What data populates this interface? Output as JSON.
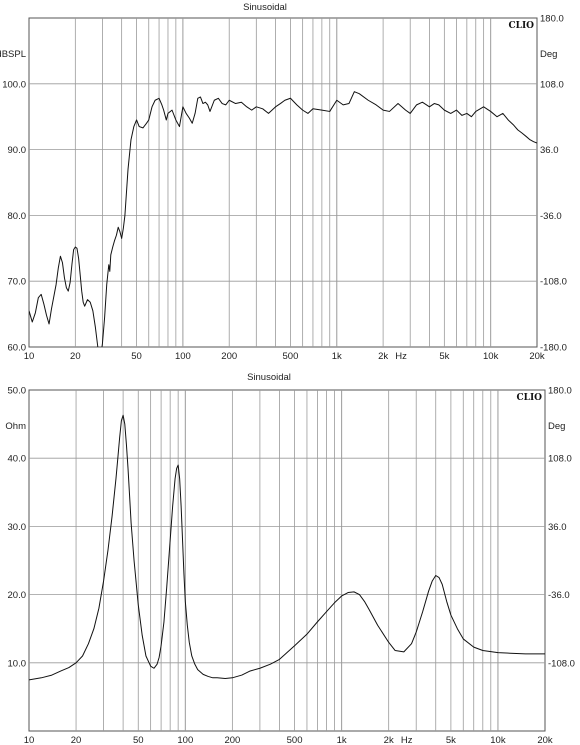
{
  "chart_data": [
    {
      "type": "line",
      "title": "Sinusoidal",
      "brand": "CLIO",
      "xscale": "log",
      "xlim": [
        10,
        20000
      ],
      "ylim": [
        60,
        110
      ],
      "ylim_right": [
        -180,
        180
      ],
      "ylabel": "dBSPL",
      "ylabel_right": "Deg",
      "x_unit_label": "Hz",
      "grid": true,
      "x_ticks": [
        {
          "v": 10,
          "label": "10"
        },
        {
          "v": 20,
          "label": "20"
        },
        {
          "v": 50,
          "label": "50"
        },
        {
          "v": 100,
          "label": "100"
        },
        {
          "v": 200,
          "label": "200"
        },
        {
          "v": 500,
          "label": "500"
        },
        {
          "v": 1000,
          "label": "1k"
        },
        {
          "v": 2000,
          "label": "2k"
        },
        {
          "v": 5000,
          "label": "5k"
        },
        {
          "v": 10000,
          "label": "10k"
        },
        {
          "v": 20000,
          "label": "20k"
        }
      ],
      "y_ticks": [
        {
          "v": 60,
          "label": "60.0"
        },
        {
          "v": 70,
          "label": "70.0"
        },
        {
          "v": 80,
          "label": "80.0"
        },
        {
          "v": 90,
          "label": "90.0"
        },
        {
          "v": 100,
          "label": "100.0"
        }
      ],
      "y_ticks_right": [
        {
          "v": 180,
          "label": "180.0"
        },
        {
          "v": 108,
          "label": "108.0"
        },
        {
          "v": 36,
          "label": "36.0"
        },
        {
          "v": -36,
          "label": "-36.0"
        },
        {
          "v": -108,
          "label": "-108.0"
        },
        {
          "v": -180,
          "label": "-180.0"
        }
      ],
      "series": [
        {
          "x": [
            10,
            10.5,
            11,
            11.5,
            12,
            12.5,
            13,
            13.5,
            14,
            15,
            15.5,
            16,
            16.5,
            17,
            17.5,
            18,
            18.5,
            19,
            19.5,
            20,
            20.5,
            21,
            21.5,
            22,
            22.5,
            23,
            24,
            25,
            26,
            27,
            28,
            29,
            30,
            31,
            32,
            33,
            33.5,
            34,
            35,
            36,
            37,
            38,
            39,
            40,
            41,
            42,
            44,
            46,
            48,
            50,
            52,
            55,
            58,
            60,
            63,
            66,
            70,
            73,
            75,
            78,
            80,
            85,
            90,
            95,
            100,
            105,
            110,
            115,
            120,
            125,
            130,
            135,
            140,
            145,
            150,
            160,
            170,
            180,
            190,
            200,
            220,
            240,
            260,
            280,
            300,
            330,
            360,
            400,
            430,
            460,
            500,
            550,
            600,
            650,
            700,
            800,
            900,
            1000,
            1100,
            1200,
            1300,
            1400,
            1600,
            1800,
            2000,
            2200,
            2500,
            2800,
            3000,
            3300,
            3600,
            4000,
            4300,
            4600,
            5000,
            5500,
            6000,
            6500,
            7000,
            7500,
            8000,
            9000,
            10000,
            11000,
            12000,
            13000,
            14000,
            15000,
            16000,
            17000,
            18000,
            19000,
            20000
          ],
          "y": [
            65.5,
            63.8,
            65.2,
            67.5,
            68.0,
            66.5,
            64.8,
            63.5,
            65.8,
            69.5,
            72.0,
            73.8,
            72.8,
            70.5,
            69.0,
            68.5,
            69.8,
            72.5,
            74.8,
            75.2,
            75.0,
            73.5,
            71.0,
            68.5,
            66.8,
            66.2,
            67.2,
            66.8,
            65.5,
            63.0,
            60.0,
            58.0,
            60.5,
            64.5,
            69.5,
            72.5,
            71.5,
            74.0,
            75.2,
            76.2,
            77.0,
            78.2,
            77.5,
            76.5,
            78.0,
            80.0,
            87.0,
            91.5,
            93.5,
            94.5,
            93.5,
            93.3,
            94.0,
            94.5,
            96.5,
            97.5,
            97.8,
            96.8,
            96.0,
            94.5,
            95.5,
            96.0,
            94.5,
            93.5,
            96.5,
            95.5,
            94.8,
            94.0,
            95.5,
            97.8,
            98.0,
            97.0,
            97.2,
            96.8,
            95.8,
            97.5,
            97.8,
            97.0,
            96.8,
            97.5,
            97.0,
            97.2,
            96.5,
            96.0,
            96.5,
            96.2,
            95.5,
            96.5,
            97.0,
            97.5,
            97.8,
            96.8,
            96.0,
            95.5,
            96.2,
            96.0,
            95.8,
            97.5,
            96.8,
            97.0,
            98.8,
            98.5,
            97.5,
            96.8,
            96.0,
            95.8,
            97.0,
            96.0,
            95.5,
            96.8,
            97.2,
            96.5,
            97.0,
            96.8,
            96.0,
            95.5,
            96.0,
            95.2,
            95.5,
            95.0,
            95.8,
            96.5,
            95.8,
            95.0,
            95.5,
            94.5,
            93.8,
            93.0,
            92.5,
            92.0,
            91.5,
            91.2,
            91.0
          ]
        }
      ]
    },
    {
      "type": "line",
      "title": "Sinusoidal",
      "brand": "CLIO",
      "xscale": "log",
      "xlim": [
        10,
        20000
      ],
      "ylim": [
        0,
        50
      ],
      "ylim_right": [
        -180,
        180
      ],
      "ylabel": "Ohm",
      "ylabel_right": "Deg",
      "x_unit_label": "Hz",
      "grid": true,
      "x_ticks": [
        {
          "v": 10,
          "label": "10"
        },
        {
          "v": 20,
          "label": "20"
        },
        {
          "v": 50,
          "label": "50"
        },
        {
          "v": 100,
          "label": "100"
        },
        {
          "v": 200,
          "label": "200"
        },
        {
          "v": 500,
          "label": "500"
        },
        {
          "v": 1000,
          "label": "1k"
        },
        {
          "v": 2000,
          "label": "2k"
        },
        {
          "v": 5000,
          "label": "5k"
        },
        {
          "v": 10000,
          "label": "10k"
        },
        {
          "v": 20000,
          "label": "20k"
        }
      ],
      "y_ticks": [
        {
          "v": 10,
          "label": "10.0"
        },
        {
          "v": 20,
          "label": "20.0"
        },
        {
          "v": 30,
          "label": "30.0"
        },
        {
          "v": 40,
          "label": "40.0"
        },
        {
          "v": 50,
          "label": "50.0"
        }
      ],
      "y_ticks_right": [
        {
          "v": 180,
          "label": "180.0"
        },
        {
          "v": 108,
          "label": "108.0"
        },
        {
          "v": 36,
          "label": "36.0"
        },
        {
          "v": -36,
          "label": "-36.0"
        },
        {
          "v": -108,
          "label": "-108.0"
        }
      ],
      "series": [
        {
          "x": [
            10,
            12,
            14,
            16,
            18,
            20,
            22,
            24,
            26,
            28,
            30,
            32,
            34,
            36,
            37,
            38,
            39,
            40,
            41,
            42,
            43,
            44,
            45,
            47,
            50,
            53,
            56,
            60,
            63,
            66,
            68,
            70,
            73,
            76,
            80,
            83,
            86,
            88,
            90,
            92,
            94,
            96,
            98,
            100,
            103,
            106,
            110,
            115,
            120,
            130,
            140,
            150,
            160,
            180,
            200,
            230,
            260,
            300,
            350,
            400,
            500,
            600,
            700,
            800,
            900,
            1000,
            1100,
            1200,
            1300,
            1400,
            1500,
            1700,
            2000,
            2200,
            2500,
            2800,
            3000,
            3300,
            3600,
            3800,
            4000,
            4200,
            4400,
            4700,
            5000,
            5500,
            6000,
            7000,
            8000,
            10000,
            12000,
            15000,
            20000
          ],
          "y": [
            7.5,
            7.8,
            8.2,
            8.8,
            9.3,
            10.0,
            11.0,
            12.8,
            15.0,
            18.0,
            22.0,
            26.5,
            31.5,
            37.0,
            40.0,
            43.0,
            45.5,
            46.3,
            45.0,
            42.0,
            38.5,
            34.5,
            30.5,
            25.0,
            18.5,
            14.0,
            11.0,
            9.5,
            9.2,
            9.8,
            10.8,
            12.5,
            16.0,
            21.0,
            28.0,
            33.0,
            37.0,
            38.5,
            39.0,
            37.0,
            33.0,
            28.0,
            23.0,
            19.0,
            15.5,
            13.0,
            11.0,
            9.8,
            9.0,
            8.3,
            8.0,
            7.8,
            7.8,
            7.7,
            7.8,
            8.2,
            8.8,
            9.2,
            9.8,
            10.5,
            12.5,
            14.2,
            16.0,
            17.5,
            18.8,
            19.8,
            20.3,
            20.4,
            20.0,
            19.0,
            17.8,
            15.5,
            13.0,
            11.8,
            11.6,
            12.8,
            14.5,
            17.5,
            20.5,
            22.0,
            22.8,
            22.5,
            21.5,
            19.0,
            17.0,
            15.0,
            13.5,
            12.3,
            11.8,
            11.5,
            11.4,
            11.3,
            11.3
          ]
        }
      ]
    }
  ]
}
